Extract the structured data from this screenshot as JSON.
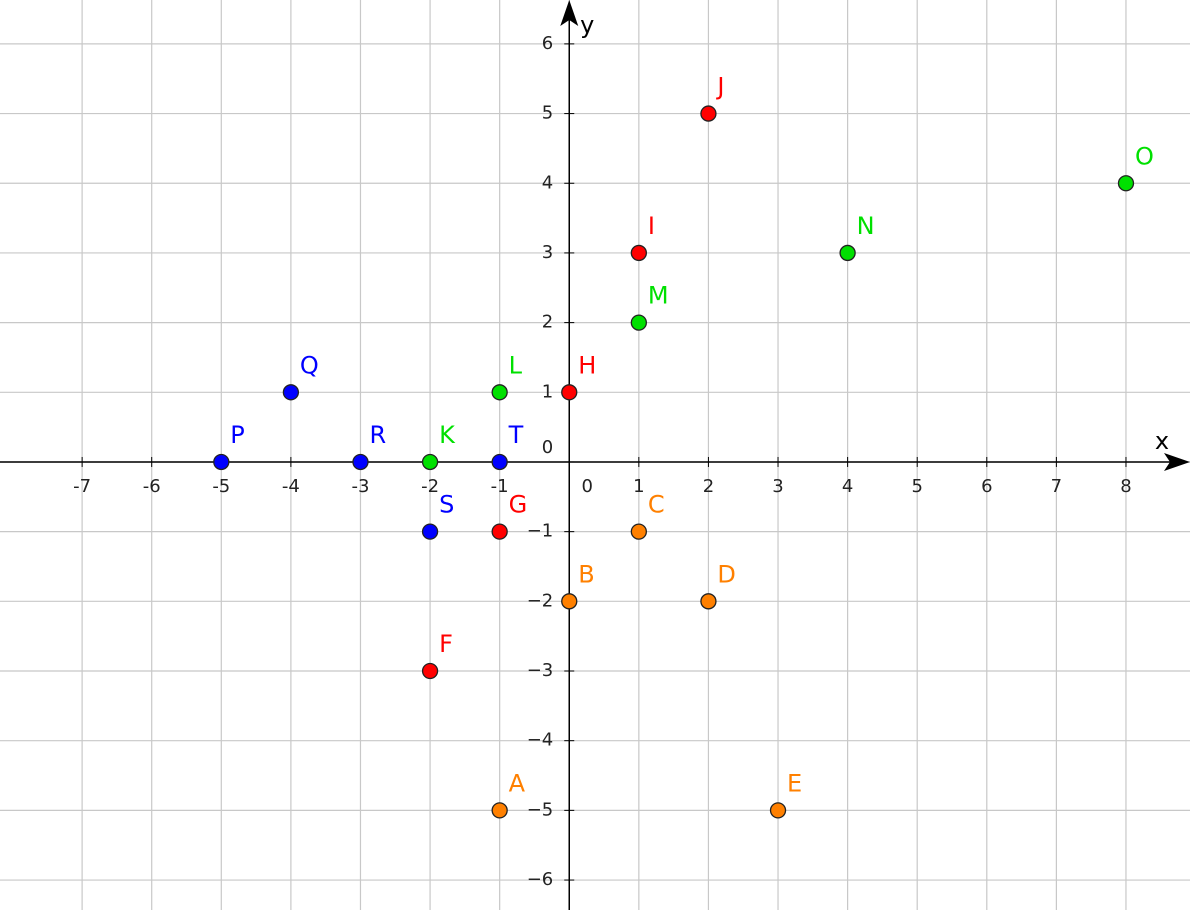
{
  "chart_data": {
    "type": "scatter",
    "x_label": "x",
    "y_label": "y",
    "xlim": [
      -8.18,
      8.92
    ],
    "ylim": [
      -6.43,
      6.63
    ],
    "xticks": [
      -7,
      -6,
      -5,
      -4,
      -3,
      -2,
      -1,
      0,
      1,
      2,
      3,
      4,
      5,
      6,
      7,
      8
    ],
    "yticks": [
      {
        "value": -6,
        "label": "−6"
      },
      {
        "value": -5,
        "label": "−5"
      },
      {
        "value": -4,
        "label": "−4"
      },
      {
        "value": -3,
        "label": "−3"
      },
      {
        "value": -2,
        "label": "−2"
      },
      {
        "value": -1,
        "label": "−1"
      },
      0,
      1,
      2,
      3,
      4,
      5,
      6
    ],
    "grid": true,
    "series": [
      {
        "color": "#ff8000",
        "labels": [
          "A",
          "B",
          "C",
          "D",
          "E"
        ],
        "x": [
          -1,
          0,
          1,
          2,
          3
        ],
        "values": [
          -5,
          -2,
          -1,
          -2,
          -5
        ]
      },
      {
        "color": "#ff0000",
        "labels": [
          "F",
          "G",
          "H",
          "I",
          "J"
        ],
        "x": [
          -2,
          -1,
          0,
          1,
          2
        ],
        "values": [
          -3,
          -1,
          1,
          3,
          5
        ]
      },
      {
        "color": "#00e000",
        "labels": [
          "K",
          "L",
          "M",
          "N",
          "O"
        ],
        "x": [
          -2,
          -1,
          1,
          4,
          8
        ],
        "values": [
          0,
          1,
          2,
          3,
          4
        ]
      },
      {
        "color": "#0000ff",
        "labels": [
          "P",
          "Q",
          "R",
          "S",
          "T"
        ],
        "x": [
          -5,
          -4,
          -3,
          -2,
          -1
        ],
        "values": [
          0,
          1,
          0,
          -1,
          0
        ]
      }
    ]
  }
}
